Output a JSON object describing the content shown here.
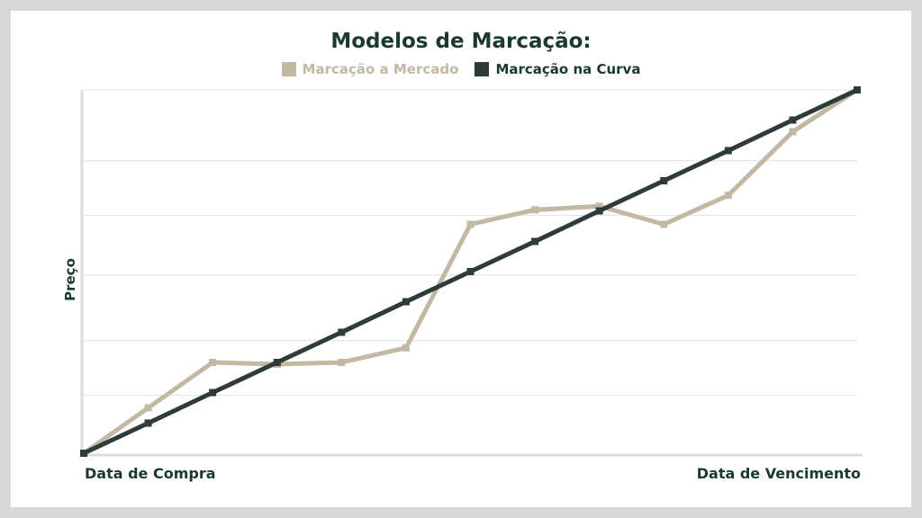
{
  "chart_data": {
    "type": "line",
    "title": "Modelos de Marcação:",
    "ylabel": "Preço",
    "xlabel_start": "Data de Compra",
    "xlabel_end": "Data de Vencimento",
    "x": [
      0,
      1,
      2,
      3,
      4,
      5,
      6,
      7,
      8,
      9,
      10,
      11,
      12
    ],
    "ylim": [
      0,
      100
    ],
    "grid": true,
    "legend_position": "top-center",
    "series": [
      {
        "name": "Marcação a Mercado",
        "color": "#c2b8a3",
        "values": [
          0,
          12.5,
          25,
          24.5,
          25,
          29,
          63,
          67,
          68,
          63,
          71,
          88.5,
          100
        ]
      },
      {
        "name": "Marcação na Curva",
        "color": "#2f3a3a",
        "values": [
          0,
          8.3,
          16.7,
          25,
          33.3,
          41.7,
          50,
          58.3,
          66.7,
          75,
          83.3,
          91.7,
          100
        ]
      }
    ]
  },
  "colors": {
    "title": "#1c3832",
    "grid": "#e2e2e2",
    "axis": "#dcdcdc",
    "background": "#d9d6d6"
  }
}
